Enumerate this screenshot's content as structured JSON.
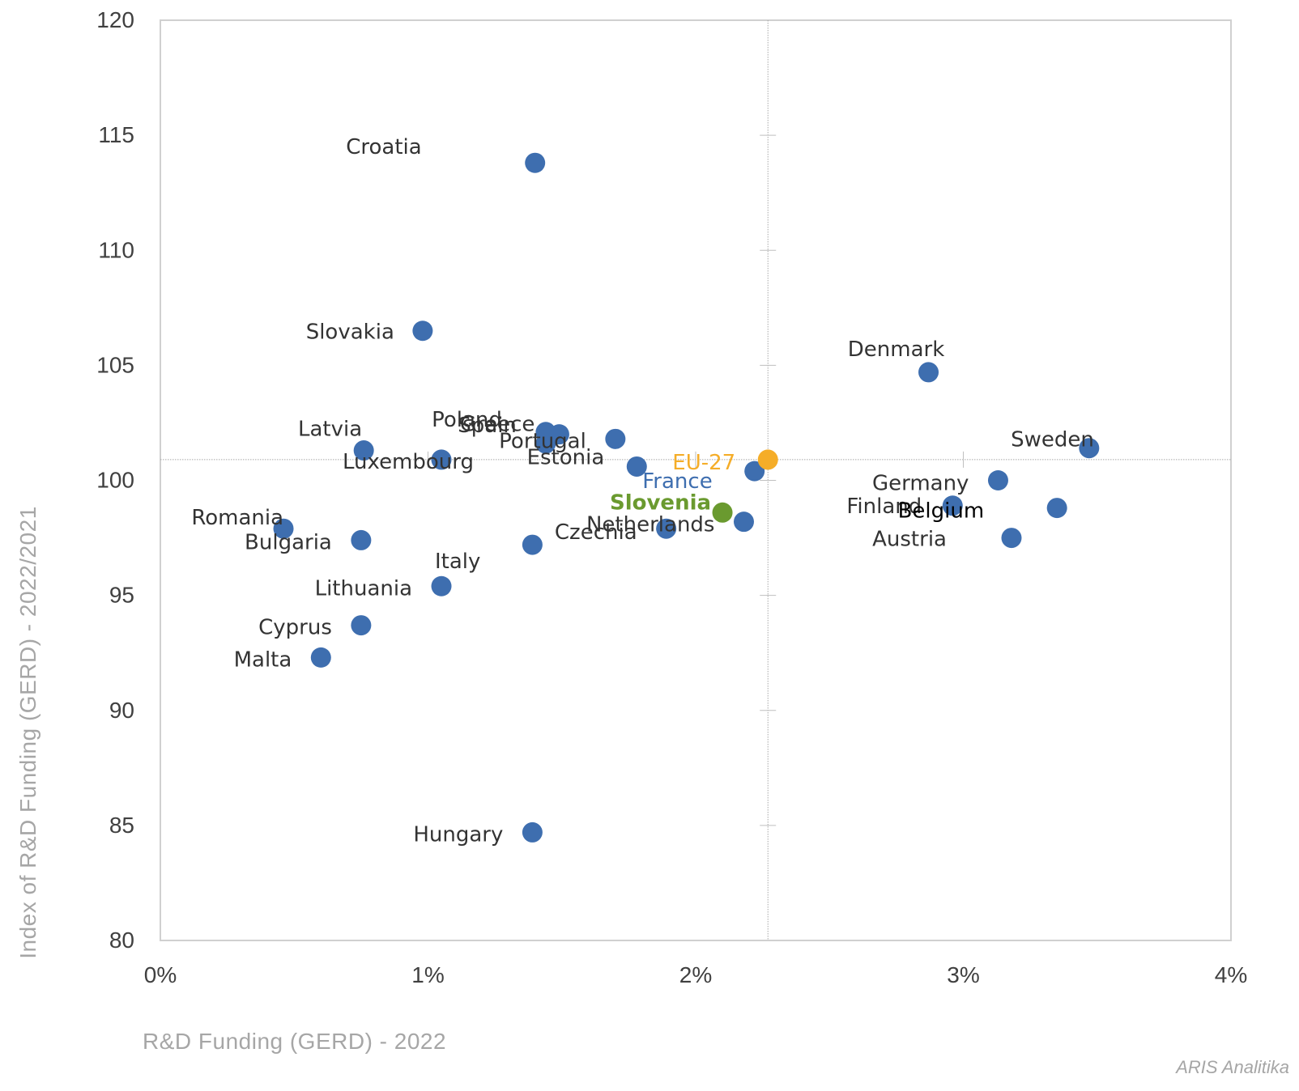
{
  "chart_data": {
    "type": "scatter",
    "xlabel": "R&D Funding  (GERD) - 2022",
    "ylabel": "Index of R&D Funding  (GERD) - 2022/2021",
    "xlim": [
      0,
      4
    ],
    "ylim": [
      80,
      120
    ],
    "x_ticks": [
      0,
      1,
      2,
      3,
      4
    ],
    "x_tick_labels": [
      "0%",
      "1%",
      "2%",
      "3%",
      "4%"
    ],
    "y_ticks": [
      80,
      85,
      90,
      95,
      100,
      105,
      110,
      115,
      120
    ],
    "y_tick_labels": [
      "80",
      "85",
      "90",
      "95",
      "100",
      "105",
      "110",
      "115",
      "120"
    ],
    "grid": false,
    "reference_lines": {
      "x": 2.27,
      "y": 100.9
    },
    "colors": {
      "countries": "#3e6eaf",
      "eu": "#f5ad28",
      "slovenia": "#6a9a2f",
      "france_label": "#3e6eaf",
      "belgium_label": "#000000"
    },
    "points": [
      {
        "label": "Croatia",
        "x": 1.4,
        "y": 113.8
      },
      {
        "label": "Slovakia",
        "x": 0.98,
        "y": 106.5
      },
      {
        "label": "Denmark",
        "x": 2.87,
        "y": 104.7
      },
      {
        "label": "Latvia",
        "x": 0.76,
        "y": 101.3
      },
      {
        "label": "Poland",
        "x": 1.44,
        "y": 102.1
      },
      {
        "label": "Spain",
        "x": 1.44,
        "y": 101.6
      },
      {
        "label": "Greece",
        "x": 1.49,
        "y": 102.0
      },
      {
        "label": "Portugal",
        "x": 1.7,
        "y": 101.8
      },
      {
        "label": "Estonia",
        "x": 1.78,
        "y": 100.6
      },
      {
        "label": "Luxembourg",
        "x": 1.05,
        "y": 100.9
      },
      {
        "label": "Sweden",
        "x": 3.47,
        "y": 101.4
      },
      {
        "label": "France",
        "x": 2.22,
        "y": 100.4
      },
      {
        "label": "Germany",
        "x": 3.13,
        "y": 100.0
      },
      {
        "label": "Finland",
        "x": 2.96,
        "y": 98.9
      },
      {
        "label": "Belgium",
        "x": 3.35,
        "y": 98.8
      },
      {
        "label": "Austria",
        "x": 3.18,
        "y": 97.5
      },
      {
        "label": "Netherlands",
        "x": 2.18,
        "y": 98.2
      },
      {
        "label": "Czechia",
        "x": 1.89,
        "y": 97.9
      },
      {
        "label": "Romania",
        "x": 0.46,
        "y": 97.9
      },
      {
        "label": "Bulgaria",
        "x": 0.75,
        "y": 97.4
      },
      {
        "label": "Italy",
        "x": 1.39,
        "y": 97.2
      },
      {
        "label": "Lithuania",
        "x": 1.05,
        "y": 95.4
      },
      {
        "label": "Cyprus",
        "x": 0.75,
        "y": 93.7
      },
      {
        "label": "Malta",
        "x": 0.6,
        "y": 92.3
      },
      {
        "label": "Hungary",
        "x": 1.39,
        "y": 84.7
      },
      {
        "label": "Slovenia",
        "x": 2.1,
        "y": 98.6
      },
      {
        "label": "EU-27",
        "x": 2.27,
        "y": 100.9
      }
    ]
  },
  "credit": "ARIS Analitika"
}
